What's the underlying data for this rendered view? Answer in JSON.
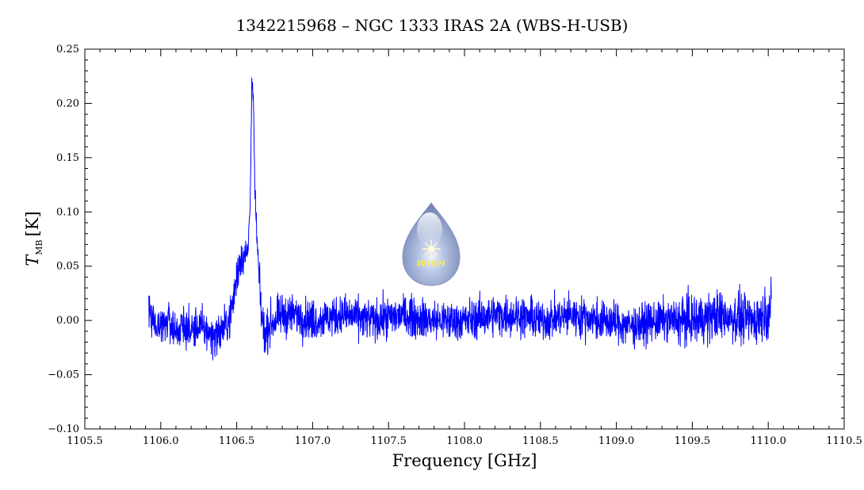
{
  "chart_data": {
    "type": "line",
    "title": "1342215968 – NGC 1333 IRAS 2A (WBS-H-USB)",
    "xlabel": "Frequency [GHz]",
    "ylabel_main": "T",
    "ylabel_sub": "MB",
    "ylabel_unit": "[K]",
    "xlim": [
      1105.5,
      1110.5
    ],
    "ylim": [
      -0.1,
      0.25
    ],
    "xticks": [
      1105.5,
      1106.0,
      1106.5,
      1107.0,
      1107.5,
      1108.0,
      1108.5,
      1109.0,
      1109.5,
      1110.0,
      1110.5
    ],
    "xtick_labels": [
      "1105.5",
      "1106.0",
      "1106.5",
      "1107.0",
      "1107.5",
      "1108.0",
      "1108.5",
      "1109.0",
      "1109.5",
      "1110.0",
      "1110.5"
    ],
    "yticks": [
      -0.1,
      -0.05,
      0.0,
      0.05,
      0.1,
      0.15,
      0.2,
      0.25
    ],
    "ytick_labels": [
      "−0.10",
      "−0.05",
      "0.00",
      "0.05",
      "0.10",
      "0.15",
      "0.20",
      "0.25"
    ],
    "grid": false,
    "line_color": "#0000ff",
    "series": [
      {
        "x": [
          1105.92,
          1105.95,
          1106.0,
          1106.05,
          1106.1,
          1106.15,
          1106.2,
          1106.25,
          1106.3,
          1106.35,
          1106.4,
          1106.45,
          1106.48,
          1106.5,
          1106.52,
          1106.54,
          1106.56,
          1106.575,
          1106.59,
          1106.6,
          1106.61,
          1106.62,
          1106.635,
          1106.65,
          1106.67,
          1106.69,
          1106.71,
          1106.75,
          1106.8,
          1106.9,
          1107.0,
          1107.2,
          1107.4,
          1107.6,
          1107.8,
          1108.0,
          1108.2,
          1108.35,
          1108.5,
          1108.7,
          1108.9,
          1109.1,
          1109.3,
          1109.5,
          1109.7,
          1109.9,
          1110.02
        ],
        "values": [
          0.01,
          0.0,
          -0.005,
          0.0,
          -0.01,
          -0.005,
          -0.01,
          -0.005,
          -0.01,
          -0.015,
          -0.01,
          0.0,
          0.02,
          0.04,
          0.055,
          0.06,
          0.06,
          0.065,
          0.12,
          0.22,
          0.2,
          0.12,
          0.07,
          0.03,
          -0.005,
          -0.015,
          -0.005,
          0.0,
          0.005,
          0.005,
          0.0,
          0.005,
          0.0,
          0.005,
          0.0,
          0.0,
          0.005,
          0.005,
          0.0,
          0.005,
          0.0,
          -0.005,
          0.0,
          0.0,
          0.005,
          0.0,
          0.01
        ],
        "noise_rms": 0.013
      }
    ]
  },
  "logo": {
    "text": "WISH",
    "icon": "water-drop-star-icon",
    "color_top": "#c9d3ea",
    "color_bottom": "#7f8fbd",
    "text_color": "#f5e85a"
  }
}
